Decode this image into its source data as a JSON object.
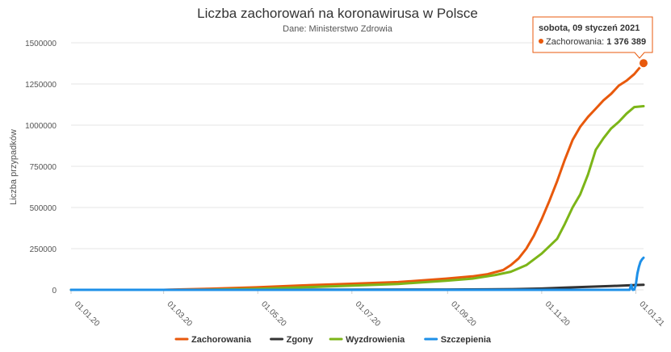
{
  "chart_data": {
    "type": "line",
    "title": "Liczba zachorowań na koronawirusa w Polsce",
    "subtitle": "Dane: Ministerstwo Zdrowia",
    "ylabel": "Liczba przypadków",
    "xlabel": "",
    "ylim": [
      0,
      1500000
    ],
    "yticks": [
      0,
      250000,
      500000,
      750000,
      1000000,
      1250000,
      1500000
    ],
    "ytick_labels": [
      "0",
      "250000",
      "500000",
      "750000",
      "1000000",
      "1250000",
      "1500000"
    ],
    "xlim": [
      0,
      371
    ],
    "xticks": [
      {
        "day": 0,
        "label": "01.01.20"
      },
      {
        "day": 60,
        "label": "01.03.20"
      },
      {
        "day": 121,
        "label": "01.05.20"
      },
      {
        "day": 182,
        "label": "01.07.20"
      },
      {
        "day": 244,
        "label": "01.09.20"
      },
      {
        "day": 305,
        "label": "01.11.20"
      },
      {
        "day": 366,
        "label": "01.01.21"
      }
    ],
    "series": [
      {
        "name": "Zachorowania",
        "color": "#e8590c",
        "x": [
          0,
          60,
          64,
          90,
          120,
          150,
          181,
          212,
          243,
          260,
          270,
          280,
          285,
          290,
          295,
          300,
          305,
          310,
          315,
          320,
          325,
          330,
          335,
          340,
          345,
          350,
          355,
          360,
          365,
          371
        ],
        "y": [
          0,
          0,
          1000,
          7000,
          15000,
          27000,
          37000,
          47000,
          68000,
          82000,
          95000,
          120000,
          150000,
          190000,
          250000,
          330000,
          430000,
          540000,
          660000,
          790000,
          910000,
          990000,
          1050000,
          1100000,
          1150000,
          1190000,
          1240000,
          1270000,
          1310000,
          1376389
        ]
      },
      {
        "name": "Zgony",
        "color": "#333333",
        "x": [
          0,
          64,
          120,
          181,
          243,
          270,
          290,
          305,
          320,
          335,
          350,
          365,
          371
        ],
        "y": [
          0,
          0,
          500,
          1500,
          2000,
          3000,
          5000,
          8000,
          13000,
          18000,
          23000,
          29000,
          31000
        ]
      },
      {
        "name": "Wyzdrowienia",
        "color": "#7cb518",
        "x": [
          0,
          64,
          90,
          120,
          150,
          181,
          212,
          243,
          260,
          275,
          285,
          295,
          305,
          315,
          320,
          325,
          330,
          335,
          340,
          345,
          350,
          355,
          360,
          365,
          371
        ],
        "y": [
          0,
          0,
          1000,
          6000,
          15000,
          25000,
          36000,
          55000,
          68000,
          90000,
          110000,
          150000,
          220000,
          310000,
          400000,
          500000,
          580000,
          700000,
          850000,
          920000,
          980000,
          1020000,
          1070000,
          1110000,
          1115000
        ]
      },
      {
        "name": "Szczepienia",
        "color": "#1e90e8",
        "x": [
          0,
          362,
          363,
          364,
          365,
          366,
          367,
          368,
          369,
          370,
          371
        ],
        "y": [
          0,
          0,
          30000,
          0,
          1000,
          30000,
          100000,
          140000,
          170000,
          185000,
          195000
        ]
      }
    ],
    "legend": [
      "Zachorowania",
      "Zgony",
      "Wyzdrowienia",
      "Szczepienia"
    ],
    "legend_position": "bottom-center",
    "tooltip": {
      "date": "sobota, 09 styczeń 2021",
      "series_label": "Zachorowania",
      "value": "1 376 389"
    }
  }
}
